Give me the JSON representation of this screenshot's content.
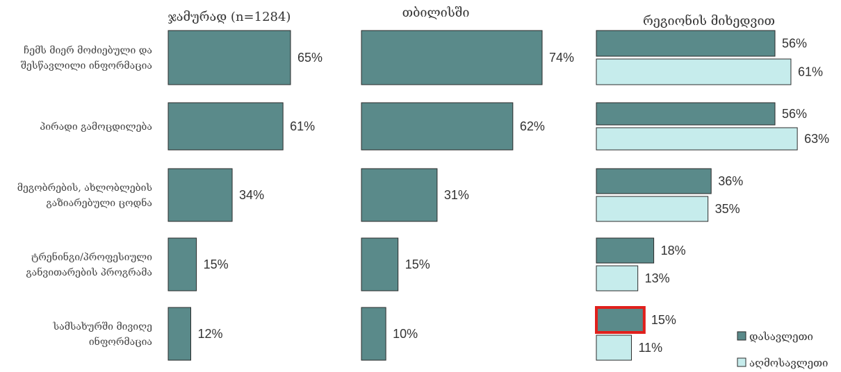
{
  "colors": {
    "dark": "#5a8a8a",
    "light": "#c6ecec",
    "stroke": "#2b2b2b",
    "highlight": "#e0201c"
  },
  "chart_data": [
    {
      "type": "bar",
      "orientation": "horizontal",
      "title": "ჯამურად (n=1284)",
      "categories": [
        [
          "ჩემს მიერ მოძიებული და",
          "შესწავლილი ინფორმაცია"
        ],
        [
          "პირადი გამოცდილება"
        ],
        [
          "მეგობრების, ახლობლების",
          "გაზიარებული ცოდნა"
        ],
        [
          "ტრენინგი/პროფესიული",
          "განვითარების პროგრამა"
        ],
        [
          "სამსახურში მივიღე",
          "ინფორმაცია"
        ]
      ],
      "series": [
        {
          "values": [
            65,
            61,
            34,
            15,
            12
          ],
          "labels": [
            "65%",
            "61%",
            "34%",
            "15%",
            "12%"
          ]
        }
      ],
      "unit": "%"
    },
    {
      "type": "bar",
      "orientation": "horizontal",
      "title": "თბილისში",
      "series": [
        {
          "values": [
            74,
            62,
            31,
            15,
            10
          ],
          "labels": [
            "74%",
            "62%",
            "31%",
            "15%",
            "10%"
          ]
        }
      ],
      "unit": "%"
    },
    {
      "type": "bar",
      "orientation": "horizontal",
      "title": "რეგიონის მიხედვით",
      "series": [
        {
          "name": "დასავლეთი",
          "values": [
            56,
            56,
            36,
            18,
            15
          ],
          "labels": [
            "56%",
            "56%",
            "36%",
            "18%",
            "15%"
          ]
        },
        {
          "name": "აღმოსავლეთი",
          "values": [
            61,
            63,
            35,
            13,
            11
          ],
          "labels": [
            "61%",
            "63%",
            "35%",
            "13%",
            "11%"
          ]
        }
      ],
      "highlighted": {
        "series": 0,
        "category": 4
      },
      "legend_position": "bottom-right",
      "unit": "%"
    }
  ]
}
